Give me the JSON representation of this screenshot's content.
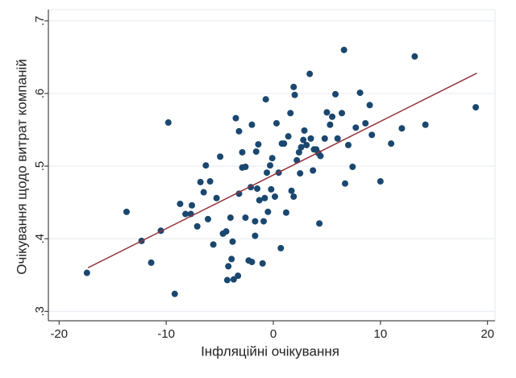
{
  "chart_data": {
    "type": "scatter",
    "x_label": "Інфляційні очікування",
    "y_label": "Очікування щодо витрат компаній",
    "xlim": [
      -21,
      20.7
    ],
    "xticks": [
      -20,
      -10,
      0,
      10,
      20
    ],
    "ylim": [
      0.287,
      0.711
    ],
    "yticks": [
      {
        "value": 0.3,
        "label": ".3"
      },
      {
        "value": 0.4,
        "label": ".4"
      },
      {
        "value": 0.5,
        "label": ".5"
      },
      {
        "value": 0.6,
        "label": ".6"
      },
      {
        "value": 0.7,
        "label": ".7"
      }
    ],
    "grid": true,
    "points": {
      "color": "#1a476f",
      "x": [
        -17.4,
        -13.7,
        -12.3,
        -11.4,
        -10.5,
        -9.8,
        -9.2,
        -8.7,
        -8.2,
        -7.7,
        -7.6,
        -7.1,
        -6.8,
        -6.5,
        -6.3,
        -6.1,
        -5.9,
        -5.6,
        -5.3,
        -4.96,
        -4.7,
        -4.4,
        -4.2,
        -4.0,
        -3.8,
        -3.9,
        -4.3,
        -3.7,
        -3.5,
        -3.3,
        -3.2,
        -3.2,
        -2.9,
        -2.9,
        -2.6,
        -2.6,
        -2.3,
        -2.1,
        -2.0,
        -2.0,
        -1.7,
        -1.7,
        -1.6,
        -1.5,
        -1.4,
        -1.3,
        -1.0,
        -0.9,
        -0.8,
        -0.7,
        -0.6,
        -0.5,
        -0.3,
        -0.2,
        -0.1,
        0.15,
        0.3,
        0.5,
        0.7,
        0.8,
        1.0,
        1.2,
        1.4,
        1.6,
        1.7,
        1.9,
        1.9,
        2.0,
        2.2,
        2.4,
        2.5,
        2.6,
        2.8,
        2.9,
        3.1,
        3.4,
        3.5,
        3.7,
        3.8,
        4.0,
        4.2,
        4.3,
        4.4,
        4.8,
        5.0,
        5.3,
        5.5,
        5.8,
        6.0,
        6.4,
        6.6,
        6.7,
        7.0,
        7.4,
        7.7,
        8.1,
        8.6,
        9.0,
        9.2,
        10.0,
        11.0,
        12.0,
        13.2,
        14.2,
        18.9
      ],
      "y": [
        0.353,
        0.437,
        0.397,
        0.367,
        0.411,
        0.56,
        0.324,
        0.448,
        0.434,
        0.434,
        0.446,
        0.417,
        0.478,
        0.464,
        0.501,
        0.427,
        0.479,
        0.392,
        0.456,
        0.513,
        0.407,
        0.41,
        0.362,
        0.429,
        0.396,
        0.372,
        0.343,
        0.344,
        0.566,
        0.349,
        0.462,
        0.548,
        0.519,
        0.498,
        0.499,
        0.429,
        0.37,
        0.471,
        0.368,
        0.557,
        0.424,
        0.404,
        0.52,
        0.469,
        0.53,
        0.453,
        0.366,
        0.424,
        0.456,
        0.592,
        0.491,
        0.437,
        0.501,
        0.468,
        0.511,
        0.458,
        0.559,
        0.491,
        0.387,
        0.531,
        0.531,
        0.436,
        0.541,
        0.573,
        0.466,
        0.458,
        0.609,
        0.598,
        0.508,
        0.519,
        0.49,
        0.526,
        0.536,
        0.549,
        0.529,
        0.627,
        0.538,
        0.494,
        0.523,
        0.523,
        0.518,
        0.421,
        0.514,
        0.538,
        0.574,
        0.557,
        0.568,
        0.599,
        0.538,
        0.573,
        0.66,
        0.476,
        0.529,
        0.499,
        0.553,
        0.601,
        0.559,
        0.584,
        0.543,
        0.479,
        0.531,
        0.552,
        0.651,
        0.557,
        0.581
      ]
    },
    "fit": {
      "color": "#90353b",
      "x": [
        -17.3,
        19
      ],
      "y": [
        0.36,
        0.628
      ]
    }
  }
}
